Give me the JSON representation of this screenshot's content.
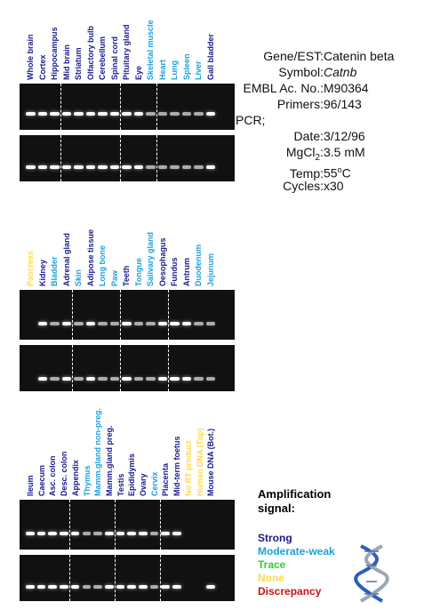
{
  "colors": {
    "strong": "#1a1a8c",
    "moderate_weak": "#1ea0dc",
    "trace": "#33cc33",
    "none": "#ffd84a",
    "discrepancy": "#cc1111"
  },
  "panel1": {
    "lanes": [
      {
        "label": "Whole brain",
        "level": "strong"
      },
      {
        "label": "Cortex",
        "level": "strong"
      },
      {
        "label": "Hippocampus",
        "level": "strong"
      },
      {
        "label": "Mid brain",
        "level": "strong"
      },
      {
        "label": "Striatum",
        "level": "strong"
      },
      {
        "label": "Olfactory bulb",
        "level": "strong"
      },
      {
        "label": "Cerebellum",
        "level": "strong"
      },
      {
        "label": "Spinal cord",
        "level": "strong"
      },
      {
        "label": "Pituitary gland",
        "level": "strong"
      },
      {
        "label": "Eye",
        "level": "strong"
      },
      {
        "label": "Skeletal muscle",
        "level": "moderate_weak"
      },
      {
        "label": "Heart",
        "level": "moderate_weak"
      },
      {
        "label": "Lung",
        "level": "moderate_weak"
      },
      {
        "label": "Spleen",
        "level": "moderate_weak"
      },
      {
        "label": "Liver",
        "level": "moderate_weak"
      },
      {
        "label": "Gall bladder",
        "level": "strong"
      }
    ]
  },
  "panel2": {
    "lanes": [
      {
        "label": "Pancreas",
        "level": "none"
      },
      {
        "label": "Kidney",
        "level": "strong"
      },
      {
        "label": "Bladder",
        "level": "moderate_weak"
      },
      {
        "label": "Adrenal gland",
        "level": "strong"
      },
      {
        "label": "Skin",
        "level": "moderate_weak"
      },
      {
        "label": "Adipose tissue",
        "level": "strong"
      },
      {
        "label": "Long bone",
        "level": "moderate_weak"
      },
      {
        "label": "Paw",
        "level": "moderate_weak"
      },
      {
        "label": "Teeth",
        "level": "strong"
      },
      {
        "label": "Tongue",
        "level": "moderate_weak"
      },
      {
        "label": "Salivary gland",
        "level": "moderate_weak"
      },
      {
        "label": "Oesophagus",
        "level": "strong"
      },
      {
        "label": "Fundus",
        "level": "strong"
      },
      {
        "label": "Antrum",
        "level": "strong"
      },
      {
        "label": "Duodenum",
        "level": "moderate_weak"
      },
      {
        "label": "Jejunum",
        "level": "moderate_weak"
      }
    ]
  },
  "panel3": {
    "lanes": [
      {
        "label": "Ileum",
        "level": "strong"
      },
      {
        "label": "Caecum",
        "level": "strong"
      },
      {
        "label": "Asc. colon",
        "level": "strong"
      },
      {
        "label": "Desc. colon",
        "level": "strong"
      },
      {
        "label": "Appendix",
        "level": "strong"
      },
      {
        "label": "Thymus",
        "level": "moderate_weak"
      },
      {
        "label": "Mamm.gland non-preg.",
        "level": "moderate_weak"
      },
      {
        "label": "Mamm.gland preg.",
        "level": "strong"
      },
      {
        "label": "Testis",
        "level": "strong"
      },
      {
        "label": "Epididymis",
        "level": "strong"
      },
      {
        "label": "Ovary",
        "level": "strong"
      },
      {
        "label": "Cervix",
        "level": "moderate_weak"
      },
      {
        "label": "Placenta",
        "level": "strong"
      },
      {
        "label": "Mid-term foetus",
        "level": "strong"
      },
      {
        "label": "No RT product",
        "level": "none"
      },
      {
        "label": "Human DNA (Top)",
        "level": "none"
      },
      {
        "label": "Mouse DNA (Bot.)",
        "level": "strong"
      }
    ]
  },
  "info": {
    "gene_key": "Gene/EST:",
    "gene_val": "Catenin beta",
    "symbol_key": "Symbol:",
    "symbol_val": "Catnb",
    "embl_key": "EMBL Ac. No.:",
    "embl_val": "M90364",
    "primers_key": "Primers:",
    "primers_val": "96/143",
    "pcr_key": "PCR;",
    "date_key": "Date:",
    "date_val": "3/12/96",
    "mgcl_key": "MgCl",
    "mgcl_sub": "2",
    "mgcl_colon": ":",
    "mgcl_val": "3.5 mM",
    "temp_key": "Temp:",
    "temp_val": "55",
    "temp_sup": "o",
    "temp_unit": "C",
    "cycles_key": "Cycles:",
    "cycles_val": "x30"
  },
  "legend": {
    "title": "Amplification signal:",
    "strong": "Strong",
    "moderate_weak": "Moderate-weak",
    "trace": "Trace",
    "none": "None",
    "discrepancy": "Discrepancy"
  }
}
